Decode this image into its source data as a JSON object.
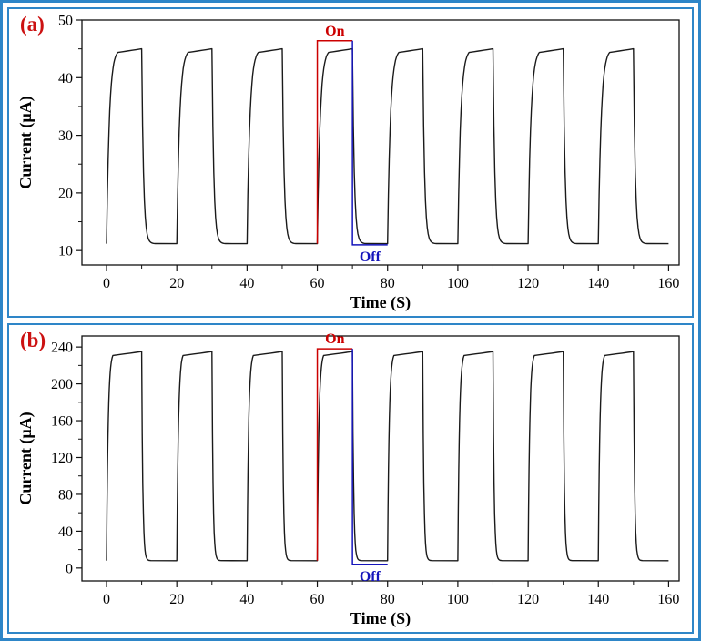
{
  "figure": {
    "background": "#ffffff",
    "outer_border_color": "#2e86c8",
    "panel_border_color": "#2e86c8"
  },
  "chart_data": [
    {
      "id": "a",
      "type": "line",
      "panel_label": "(a)",
      "panel_label_color": "#cc1111",
      "xlabel": "Time (S)",
      "ylabel": "Current (μA)",
      "xlim": [
        -7,
        163
      ],
      "ylim": [
        7.5,
        50
      ],
      "xticks": [
        0,
        20,
        40,
        60,
        80,
        100,
        120,
        140,
        160
      ],
      "yticks": [
        10,
        20,
        30,
        40,
        50
      ],
      "x_minor_step": 10,
      "y_minor_step": 5,
      "baseline": 11.2,
      "peak": 45,
      "on_duration": 10,
      "rise_time": 3.2,
      "fall_time": 2.6,
      "pulses_on": [
        0,
        20,
        40,
        60,
        80,
        100,
        120,
        140
      ],
      "x_start": 0,
      "x_end": 160,
      "line_color": "#1a1a1a",
      "annotation": {
        "on_text": "On",
        "on_color": "#cc0000",
        "on_x": [
          60,
          70
        ],
        "on_level": 46.4,
        "off_text": "Off",
        "off_color": "#1515bb",
        "off_x": [
          70,
          80
        ],
        "off_level": 11.0
      }
    },
    {
      "id": "b",
      "type": "line",
      "panel_label": "(b)",
      "panel_label_color": "#cc1111",
      "xlabel": "Time (S)",
      "ylabel": "Current (μA)",
      "xlim": [
        -7,
        163
      ],
      "ylim": [
        -14,
        252
      ],
      "xticks": [
        0,
        20,
        40,
        60,
        80,
        100,
        120,
        140,
        160
      ],
      "yticks": [
        0,
        40,
        80,
        120,
        160,
        200,
        240
      ],
      "x_minor_step": 10,
      "y_minor_step": 20,
      "baseline": 8,
      "peak": 235,
      "on_duration": 10,
      "rise_time": 1.8,
      "fall_time": 1.6,
      "pulses_on": [
        0,
        20,
        40,
        60,
        80,
        100,
        120,
        140
      ],
      "x_start": 0,
      "x_end": 160,
      "line_color": "#1a1a1a",
      "annotation": {
        "on_text": "On",
        "on_color": "#cc0000",
        "on_x": [
          60,
          70
        ],
        "on_level": 238,
        "off_text": "Off",
        "off_color": "#1515bb",
        "off_x": [
          70,
          80
        ],
        "off_level": 4
      }
    }
  ]
}
